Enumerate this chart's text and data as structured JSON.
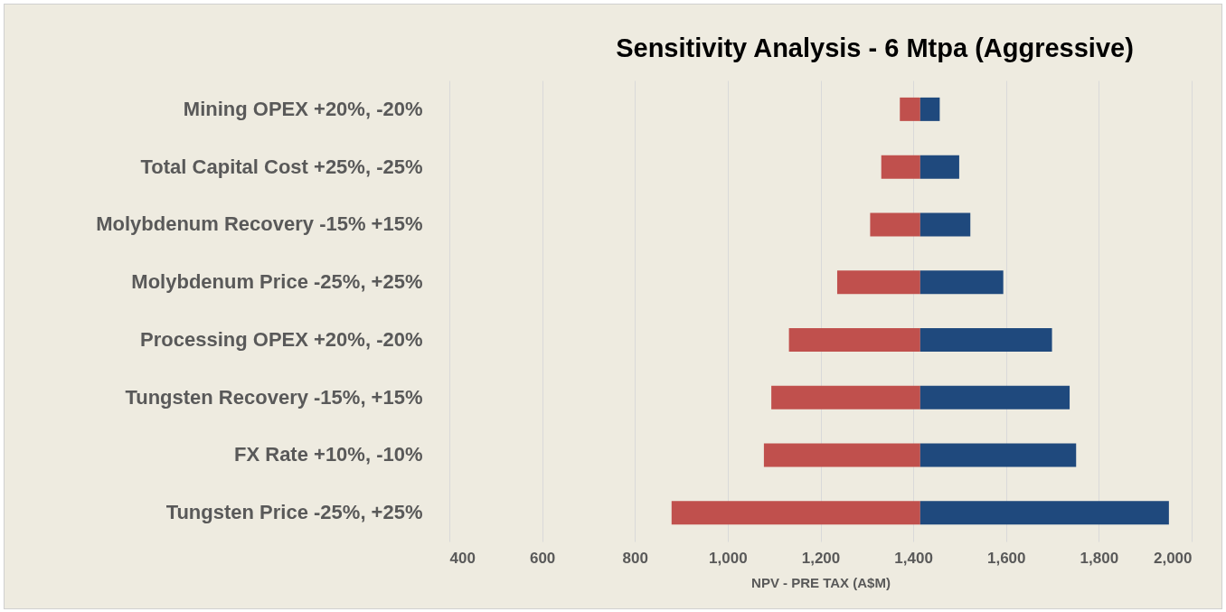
{
  "chart_data": {
    "type": "bar",
    "orientation": "horizontal",
    "title": "Sensitivity Analysis  - 6 Mtpa (Aggressive)",
    "xlabel": "NPV - PRE TAX (A$M)",
    "categories": [
      "Mining OPEX +20%, -20%",
      "Total Capital Cost +25%, -25%",
      "Molybdenum Recovery -15% +15%",
      "Molybdenum Price -25%, +25%",
      "Processing OPEX +20%, -20%",
      "Tungsten Recovery -15%, +15%",
      "FX Rate +10%, -10%",
      "Tungsten Price -25%, +25%"
    ],
    "series": [
      {
        "color": "#c0504d",
        "base": [
          1371,
          1331,
          1307,
          1236,
          1132,
          1094,
          1078,
          879
        ],
        "values": [
          44,
          84,
          108,
          179,
          283,
          321,
          337,
          536
        ]
      },
      {
        "color": "#1f497d",
        "base": [
          1415,
          1415,
          1415,
          1415,
          1415,
          1415,
          1415,
          1415
        ],
        "values": [
          42,
          84,
          108,
          179,
          284,
          322,
          336,
          536
        ]
      }
    ],
    "xlim": [
      400,
      2000
    ],
    "xticks": [
      {
        "value": 400,
        "label": "400"
      },
      {
        "value": 600,
        "label": "600"
      },
      {
        "value": 800,
        "label": "800"
      },
      {
        "value": 1000,
        "label": "1,000"
      },
      {
        "value": 1200,
        "label": "1,200"
      },
      {
        "value": 1400,
        "label": "1,400"
      },
      {
        "value": 1600,
        "label": "1,600"
      },
      {
        "value": 1800,
        "label": "1,800"
      },
      {
        "value": 2000,
        "label": "2,000"
      }
    ],
    "grid": true
  }
}
